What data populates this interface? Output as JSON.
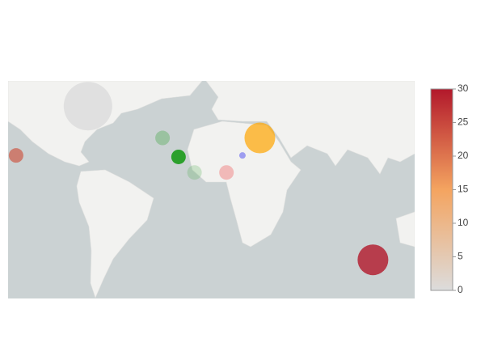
{
  "chart_data": {
    "type": "bubble-map",
    "lonlim": [
      -119,
      110
    ],
    "latlim": [
      -54,
      50
    ],
    "points": [
      {
        "lon": -74,
        "lat": 40,
        "size": 60,
        "color": "#d9d9d9",
        "opacity": 0.7
      },
      {
        "lon": -114.5,
        "lat": 15.8,
        "size": 18,
        "color": "#cc5a47",
        "opacity": 0.7
      },
      {
        "lon": -32,
        "lat": 25,
        "size": 18,
        "color": "#2ca02c",
        "opacity": 0.3
      },
      {
        "lon": -23,
        "lat": 15,
        "size": 18,
        "color": "#2ca02c",
        "opacity": 1
      },
      {
        "lon": -14,
        "lat": 6.4,
        "size": 18,
        "color": "#2ca02c",
        "opacity": 0.2
      },
      {
        "lon": 4,
        "lat": 6.4,
        "size": 18,
        "color": "#f08080",
        "opacity": 0.5
      },
      {
        "lon": 22.8,
        "lat": 25,
        "size": 38,
        "color": "#ffa500",
        "opacity": 0.7
      },
      {
        "lon": 13,
        "lat": 15.8,
        "size": 8,
        "color": "#6464f0",
        "opacity": 0.6
      },
      {
        "lon": 86.5,
        "lat": -39.2,
        "size": 38,
        "color": "#b2182b",
        "opacity": 0.8
      }
    ],
    "colorbar": {
      "lim": [
        0,
        30
      ],
      "ticks": [
        0,
        5,
        10,
        15,
        20,
        25,
        30
      ],
      "colorscale": [
        {
          "value": 0,
          "color": "#dcdcdc"
        },
        {
          "value": 15,
          "color": "#f4a460"
        },
        {
          "value": 30,
          "color": "#b2182b"
        }
      ]
    }
  }
}
